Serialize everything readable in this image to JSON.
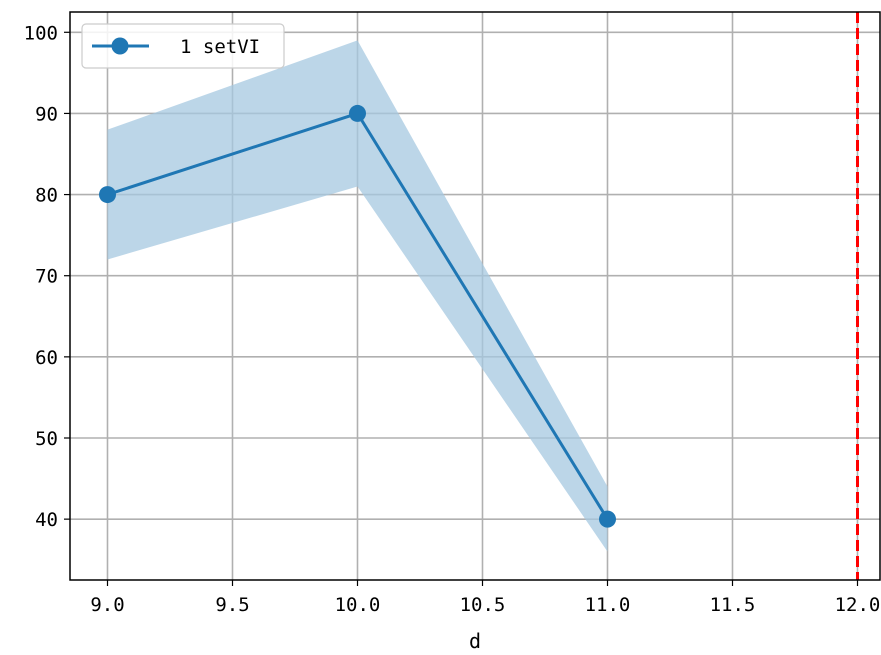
{
  "chart_data": {
    "type": "line",
    "title": "",
    "xlabel": "d",
    "ylabel": "",
    "xlim": [
      8.85,
      12.09
    ],
    "ylim": [
      32.5,
      102.5
    ],
    "xticks": [
      9.0,
      9.5,
      10.0,
      10.5,
      11.0,
      11.5,
      12.0
    ],
    "xtick_labels": [
      "9.0",
      "9.5",
      "10.0",
      "10.5",
      "11.0",
      "11.5",
      "12.0"
    ],
    "yticks": [
      40,
      50,
      60,
      70,
      80,
      90,
      100
    ],
    "ytick_labels": [
      "40",
      "50",
      "60",
      "70",
      "80",
      "90",
      "100"
    ],
    "grid": true,
    "legend_position": "top-left",
    "series": [
      {
        "name": "1 setVI",
        "color": "#1f77b4",
        "marker": "circle",
        "x": [
          9.0,
          10.0,
          11.0
        ],
        "y": [
          80,
          90,
          40
        ],
        "band_lower": [
          72,
          81,
          36
        ],
        "band_upper": [
          88,
          99,
          44
        ],
        "band_color": "#a6c8e0"
      }
    ],
    "reference_lines": [
      {
        "orientation": "vertical",
        "x": 12.0,
        "color": "#ff0000",
        "style": "dashed"
      }
    ]
  }
}
